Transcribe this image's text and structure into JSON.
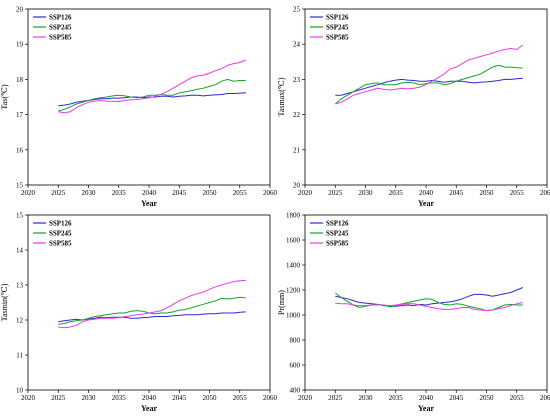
{
  "colors": {
    "SSP126": "#2b2bd6",
    "SSP245": "#13a326",
    "SSP585": "#ea3bea"
  },
  "chart_data": [
    {
      "type": "line",
      "xlabel": "Year",
      "ylabel": "Tas(℃)",
      "xlim": [
        2020,
        2060
      ],
      "ylim": [
        15,
        20
      ],
      "xticks": [
        2020,
        2025,
        2030,
        2035,
        2040,
        2045,
        2050,
        2055,
        2060
      ],
      "yticks": [
        15,
        16,
        17,
        18,
        19,
        20
      ],
      "legend": "top-left",
      "x": [
        2025,
        2026,
        2027,
        2028,
        2029,
        2030,
        2031,
        2032,
        2033,
        2034,
        2035,
        2036,
        2037,
        2038,
        2039,
        2040,
        2041,
        2042,
        2043,
        2044,
        2045,
        2046,
        2047,
        2048,
        2049,
        2050,
        2051,
        2052,
        2053,
        2054,
        2055,
        2056
      ],
      "series": [
        {
          "name": "SSP126",
          "values": [
            17.25,
            17.27,
            17.3,
            17.35,
            17.38,
            17.4,
            17.43,
            17.45,
            17.45,
            17.47,
            17.47,
            17.48,
            17.5,
            17.5,
            17.48,
            17.5,
            17.5,
            17.52,
            17.52,
            17.5,
            17.52,
            17.53,
            17.55,
            17.55,
            17.53,
            17.55,
            17.56,
            17.57,
            17.6,
            17.6,
            17.61,
            17.62
          ]
        },
        {
          "name": "SSP245",
          "values": [
            17.1,
            17.15,
            17.22,
            17.3,
            17.35,
            17.4,
            17.45,
            17.48,
            17.5,
            17.53,
            17.55,
            17.53,
            17.5,
            17.48,
            17.5,
            17.55,
            17.55,
            17.57,
            17.55,
            17.55,
            17.62,
            17.65,
            17.68,
            17.72,
            17.75,
            17.8,
            17.85,
            17.95,
            18.0,
            17.95,
            17.97,
            17.97
          ]
        },
        {
          "name": "SSP585",
          "values": [
            17.08,
            17.05,
            17.08,
            17.2,
            17.28,
            17.35,
            17.38,
            17.4,
            17.38,
            17.38,
            17.37,
            17.4,
            17.42,
            17.43,
            17.45,
            17.48,
            17.52,
            17.58,
            17.65,
            17.75,
            17.85,
            17.95,
            18.05,
            18.1,
            18.12,
            18.18,
            18.25,
            18.3,
            18.4,
            18.45,
            18.48,
            18.55
          ]
        }
      ]
    },
    {
      "type": "line",
      "xlabel": "Year",
      "ylabel": "Tasmax(℃)",
      "xlim": [
        2020,
        2060
      ],
      "ylim": [
        20,
        25
      ],
      "xticks": [
        2020,
        2025,
        2030,
        2035,
        2040,
        2045,
        2050,
        2055,
        2060
      ],
      "yticks": [
        20,
        21,
        22,
        23,
        24,
        25
      ],
      "legend": "top-left",
      "x": [
        2025,
        2026,
        2027,
        2028,
        2029,
        2030,
        2031,
        2032,
        2033,
        2034,
        2035,
        2036,
        2037,
        2038,
        2039,
        2040,
        2041,
        2042,
        2043,
        2044,
        2045,
        2046,
        2047,
        2048,
        2049,
        2050,
        2051,
        2052,
        2053,
        2054,
        2055,
        2056
      ],
      "series": [
        {
          "name": "SSP126",
          "values": [
            22.55,
            22.55,
            22.6,
            22.65,
            22.7,
            22.75,
            22.8,
            22.85,
            22.9,
            22.95,
            22.98,
            23.0,
            22.98,
            22.97,
            22.95,
            22.95,
            22.97,
            22.95,
            22.92,
            22.95,
            22.95,
            22.95,
            22.92,
            22.9,
            22.92,
            22.93,
            22.95,
            22.97,
            23.0,
            23.0,
            23.02,
            23.03
          ]
        },
        {
          "name": "SSP245",
          "values": [
            22.3,
            22.45,
            22.55,
            22.65,
            22.75,
            22.85,
            22.88,
            22.9,
            22.85,
            22.85,
            22.85,
            22.9,
            22.92,
            22.9,
            22.85,
            22.88,
            22.9,
            22.9,
            22.85,
            22.88,
            22.95,
            23.0,
            23.05,
            23.1,
            23.15,
            23.25,
            23.35,
            23.4,
            23.35,
            23.35,
            23.33,
            23.32
          ]
        },
        {
          "name": "SSP585",
          "values": [
            22.3,
            22.35,
            22.45,
            22.55,
            22.6,
            22.65,
            22.7,
            22.75,
            22.72,
            22.7,
            22.72,
            22.75,
            22.73,
            22.75,
            22.78,
            22.85,
            22.95,
            23.05,
            23.15,
            23.3,
            23.35,
            23.45,
            23.55,
            23.6,
            23.65,
            23.7,
            23.75,
            23.8,
            23.85,
            23.88,
            23.85,
            23.98
          ]
        }
      ]
    },
    {
      "type": "line",
      "xlabel": "Year",
      "ylabel": "Tasmin(℃)",
      "xlim": [
        2020,
        2060
      ],
      "ylim": [
        10,
        15
      ],
      "xticks": [
        2020,
        2025,
        2030,
        2035,
        2040,
        2045,
        2050,
        2055,
        2060
      ],
      "yticks": [
        10,
        11,
        12,
        13,
        14,
        15
      ],
      "legend": "top-left",
      "x": [
        2025,
        2026,
        2027,
        2028,
        2029,
        2030,
        2031,
        2032,
        2033,
        2034,
        2035,
        2036,
        2037,
        2038,
        2039,
        2040,
        2041,
        2042,
        2043,
        2044,
        2045,
        2046,
        2047,
        2048,
        2049,
        2050,
        2051,
        2052,
        2053,
        2054,
        2055,
        2056
      ],
      "series": [
        {
          "name": "SSP126",
          "values": [
            11.95,
            11.98,
            12.0,
            12.02,
            12.0,
            12.03,
            12.05,
            12.08,
            12.07,
            12.08,
            12.08,
            12.08,
            12.05,
            12.05,
            12.07,
            12.08,
            12.1,
            12.1,
            12.1,
            12.12,
            12.13,
            12.15,
            12.15,
            12.15,
            12.17,
            12.18,
            12.18,
            12.2,
            12.2,
            12.2,
            12.22,
            12.23
          ]
        },
        {
          "name": "SSP245",
          "values": [
            11.88,
            11.9,
            11.95,
            11.98,
            12.0,
            12.05,
            12.1,
            12.12,
            12.15,
            12.18,
            12.2,
            12.2,
            12.25,
            12.27,
            12.25,
            12.2,
            12.18,
            12.2,
            12.2,
            12.23,
            12.28,
            12.3,
            12.35,
            12.4,
            12.45,
            12.5,
            12.55,
            12.62,
            12.6,
            12.62,
            12.65,
            12.63
          ]
        },
        {
          "name": "SSP585",
          "values": [
            11.8,
            11.78,
            11.8,
            11.85,
            11.95,
            12.0,
            12.02,
            12.05,
            12.05,
            12.05,
            12.07,
            12.1,
            12.12,
            12.15,
            12.17,
            12.2,
            12.23,
            12.27,
            12.35,
            12.45,
            12.55,
            12.62,
            12.7,
            12.75,
            12.8,
            12.88,
            12.95,
            13.0,
            13.05,
            13.1,
            13.12,
            13.13
          ]
        }
      ]
    },
    {
      "type": "line",
      "xlabel": "Year",
      "ylabel": "Pr(mm)",
      "xlim": [
        2020,
        2060
      ],
      "ylim": [
        400,
        1800
      ],
      "xticks": [
        2020,
        2025,
        2030,
        2035,
        2040,
        2045,
        2050,
        2055,
        2060
      ],
      "yticks": [
        400,
        600,
        800,
        1000,
        1200,
        1400,
        1600,
        1800
      ],
      "legend": "top-left",
      "x": [
        2025,
        2026,
        2027,
        2028,
        2029,
        2030,
        2031,
        2032,
        2033,
        2034,
        2035,
        2036,
        2037,
        2038,
        2039,
        2040,
        2041,
        2042,
        2043,
        2044,
        2045,
        2046,
        2047,
        2048,
        2049,
        2050,
        2051,
        2052,
        2053,
        2054,
        2055,
        2056
      ],
      "series": [
        {
          "name": "SSP126",
          "values": [
            1150,
            1140,
            1130,
            1115,
            1100,
            1095,
            1090,
            1085,
            1075,
            1070,
            1070,
            1075,
            1080,
            1075,
            1085,
            1080,
            1090,
            1095,
            1100,
            1105,
            1115,
            1130,
            1150,
            1165,
            1165,
            1160,
            1150,
            1160,
            1170,
            1180,
            1200,
            1220
          ]
        },
        {
          "name": "SSP245",
          "values": [
            1175,
            1140,
            1110,
            1080,
            1060,
            1070,
            1080,
            1085,
            1080,
            1065,
            1075,
            1090,
            1100,
            1110,
            1120,
            1130,
            1125,
            1100,
            1085,
            1080,
            1090,
            1085,
            1070,
            1060,
            1050,
            1035,
            1040,
            1060,
            1080,
            1085,
            1080,
            1080
          ]
        },
        {
          "name": "SSP585",
          "values": [
            1095,
            1090,
            1090,
            1080,
            1075,
            1075,
            1080,
            1080,
            1080,
            1075,
            1080,
            1085,
            1090,
            1090,
            1080,
            1070,
            1060,
            1050,
            1045,
            1045,
            1050,
            1060,
            1060,
            1045,
            1040,
            1035,
            1040,
            1050,
            1060,
            1075,
            1090,
            1100
          ]
        }
      ]
    }
  ]
}
